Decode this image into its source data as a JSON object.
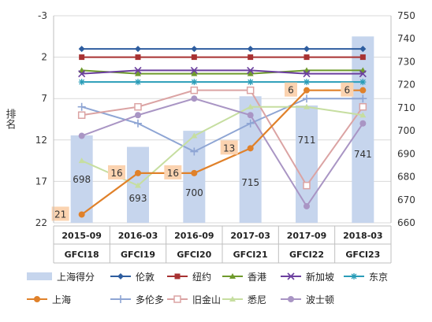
{
  "chart_data": {
    "type": "bar+line",
    "ylabel": "排名",
    "left_axis": {
      "min": -3,
      "max": 22,
      "reversed": true,
      "ticks": [
        -3,
        2,
        7,
        12,
        17,
        22
      ]
    },
    "right_axis": {
      "min": 660,
      "max": 750,
      "ticks": [
        660,
        670,
        680,
        690,
        700,
        710,
        720,
        730,
        740,
        750
      ]
    },
    "categories": [
      {
        "date": "2015-09",
        "edition": "GFCI18"
      },
      {
        "date": "2016-03",
        "edition": "GFCI19"
      },
      {
        "date": "2016-09",
        "edition": "GFCI20"
      },
      {
        "date": "2017-03",
        "edition": "GFCI21"
      },
      {
        "date": "2017-09",
        "edition": "GFCI22"
      },
      {
        "date": "2018-03",
        "edition": "GFCI23"
      }
    ],
    "bar_series": {
      "name": "上海得分",
      "color": "#c6d5ed",
      "values": [
        698,
        693,
        700,
        715,
        711,
        741
      ],
      "labels": [
        "698",
        "693",
        "700",
        "715",
        "711",
        "741"
      ]
    },
    "line_series": [
      {
        "name": "伦敦",
        "color": "#2e5d9f",
        "marker": "diamond",
        "values": [
          1,
          1,
          1,
          1,
          1,
          1
        ]
      },
      {
        "name": "纽约",
        "color": "#a83232",
        "marker": "square",
        "values": [
          2,
          2,
          2,
          2,
          2,
          2
        ]
      },
      {
        "name": "香港",
        "color": "#6f9a2c",
        "marker": "triangle",
        "values": [
          3.6,
          4.0,
          4.0,
          4.0,
          3.6,
          3.6
        ]
      },
      {
        "name": "新加坡",
        "color": "#6b3f9e",
        "marker": "x",
        "values": [
          4.0,
          3.6,
          3.6,
          3.6,
          4.0,
          4.0
        ]
      },
      {
        "name": "东京",
        "color": "#2a9db8",
        "marker": "star",
        "values": [
          5,
          5,
          5,
          5,
          5,
          5
        ]
      },
      {
        "name": "上海",
        "color": "#e0812a",
        "marker": "circle",
        "values": [
          21,
          16,
          16,
          13,
          6,
          6
        ],
        "labels": [
          "21",
          "16",
          "16",
          "13",
          "6",
          "6"
        ]
      },
      {
        "name": "多伦多",
        "color": "#8ea5d4",
        "marker": "plus",
        "values": [
          8.0,
          10.0,
          13.4,
          10.0,
          7.0,
          7.0
        ]
      },
      {
        "name": "旧金山",
        "color": "#dba3a3",
        "marker": "square-open",
        "values": [
          9.0,
          8.0,
          6.0,
          6.0,
          17.5,
          8.0
        ]
      },
      {
        "name": "悉尼",
        "color": "#c6dea0",
        "marker": "triangle",
        "values": [
          14.5,
          17.5,
          11.5,
          8.0,
          8.0,
          9.0
        ]
      },
      {
        "name": "波士顿",
        "color": "#a995c4",
        "marker": "circle",
        "values": [
          11.5,
          9.0,
          7.0,
          9.0,
          20.0,
          10.0
        ]
      }
    ]
  }
}
